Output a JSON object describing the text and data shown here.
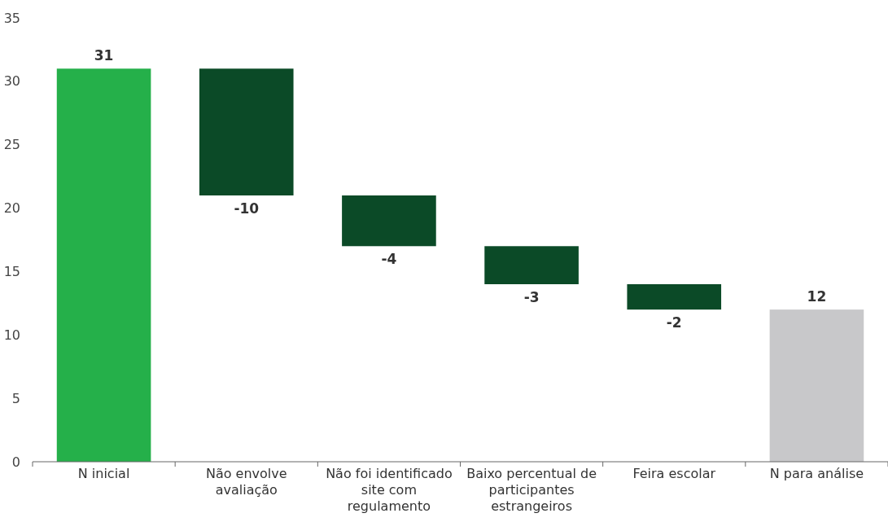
{
  "chart_data": {
    "type": "bar",
    "categories": [
      "N inicial",
      "Não envolve avaliação",
      "Não foi identificado site com regulamento",
      "Baixo percentual de participantes estrangeiros",
      "Feira escolar",
      "N para análise"
    ],
    "values": [
      31,
      -10,
      -4,
      -3,
      -2,
      12
    ],
    "base": [
      0,
      31,
      21,
      17,
      14,
      0
    ],
    "colors": [
      "#25b04a",
      "#0b4a27",
      "#0b4a27",
      "#0b4a27",
      "#0b4a27",
      "#c8c8ca"
    ],
    "ylim": [
      0,
      35
    ],
    "yticks": [
      0,
      5,
      10,
      15,
      20,
      25,
      30,
      35
    ],
    "grid": false,
    "data_labels": true
  }
}
